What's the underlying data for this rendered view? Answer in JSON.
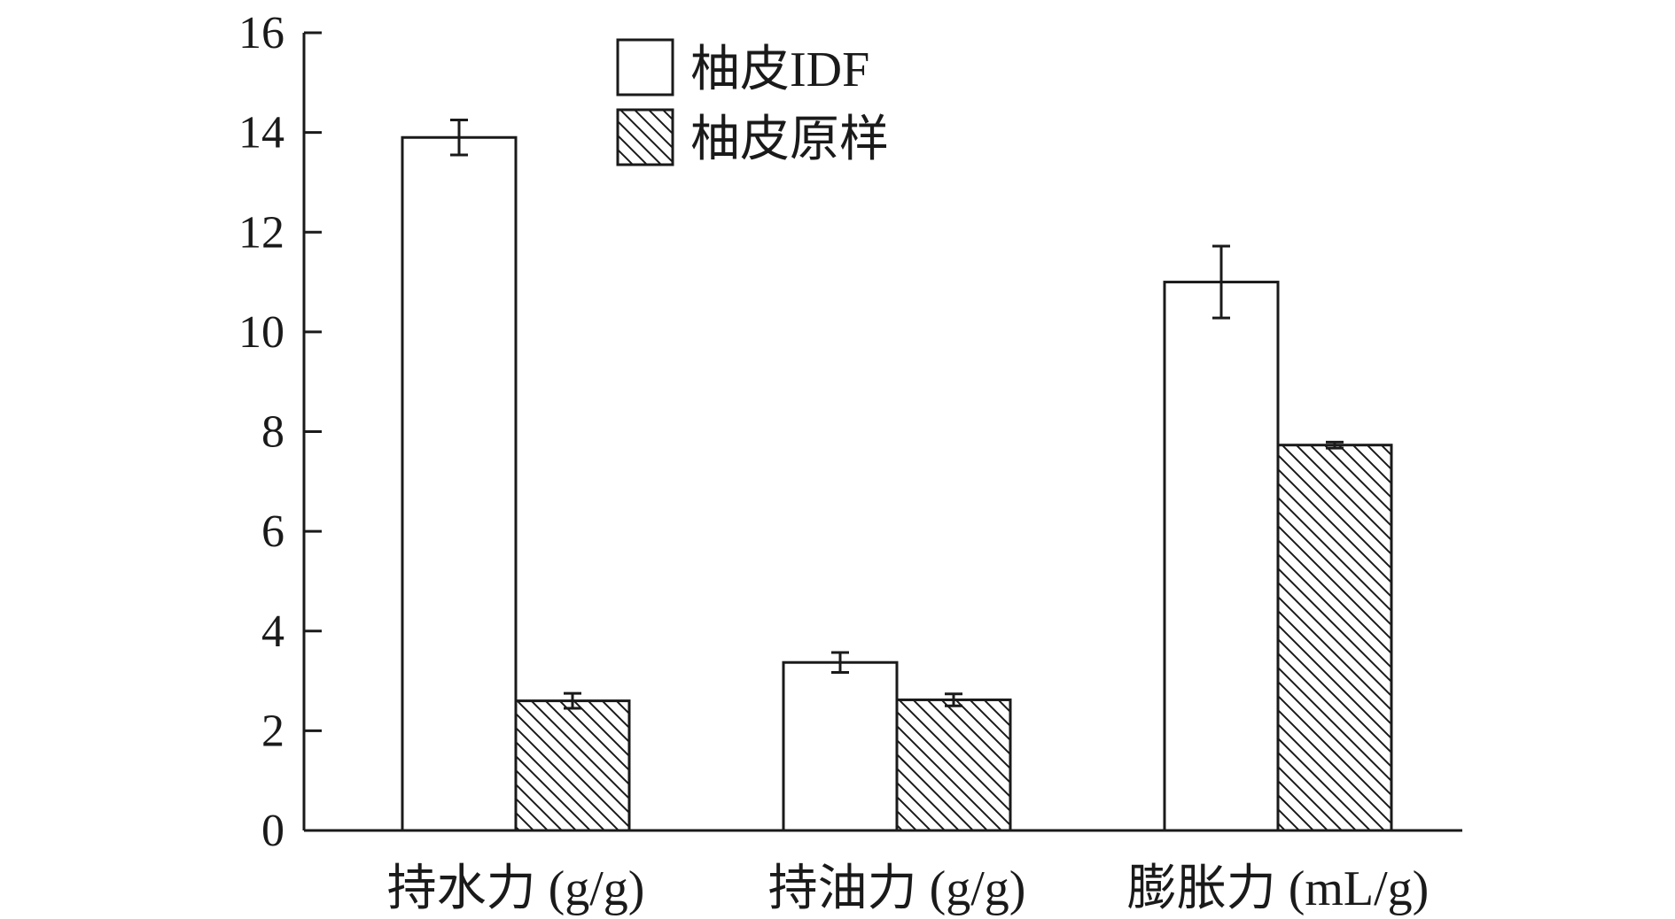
{
  "chart_data": {
    "type": "bar",
    "categories": [
      "持水力 (g/g)",
      "持油力 (g/g)",
      "膨胀力 (mL/g)"
    ],
    "series": [
      {
        "name": "柚皮IDF",
        "values": [
          13.9,
          3.37,
          11.0
        ],
        "errors": [
          0.35,
          0.2,
          0.72
        ],
        "fill": "plain"
      },
      {
        "name": "柚皮原样",
        "values": [
          2.6,
          2.62,
          7.73
        ],
        "errors": [
          0.15,
          0.12,
          0.06
        ],
        "fill": "hatched"
      }
    ],
    "ylim": [
      0,
      16
    ],
    "yticks": [
      "0",
      "2",
      "4",
      "6",
      "8",
      "10",
      "12",
      "14",
      "16"
    ],
    "xlabel": "",
    "ylabel": "",
    "title": "",
    "legend_position": "top-center",
    "grid": false,
    "colors": {
      "stroke": "#1a1a1a",
      "fill": "#ffffff"
    }
  }
}
